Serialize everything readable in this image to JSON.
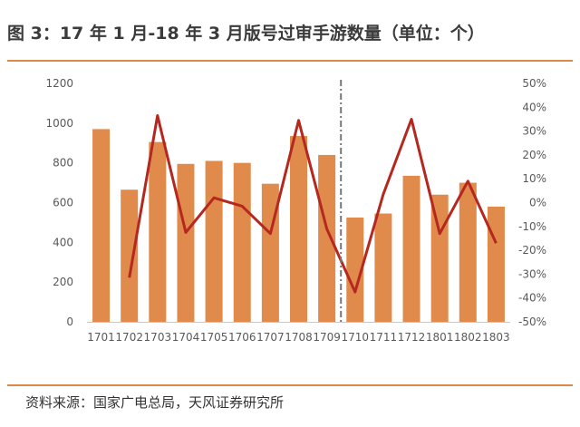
{
  "title": "图 3：17 年 1 月-18 年 3 月版号过审手游数量（单位：个）",
  "source": "资料来源：国家广电总局，天风证券研究所",
  "colors": {
    "bar": "#e08a4b",
    "line": "#b4281f",
    "rule": "#d98a4a",
    "divider": "#777777",
    "axis": "#c8c8c8",
    "text": "#595959"
  },
  "chart_data": {
    "type": "bar",
    "categories": [
      "1701",
      "1702",
      "1703",
      "1704",
      "1705",
      "1706",
      "1707",
      "1708",
      "1709",
      "1710",
      "1711",
      "1712",
      "1801",
      "1802",
      "1803"
    ],
    "left_axis": {
      "ylim": [
        0,
        1200
      ],
      "ticks": [
        0,
        200,
        400,
        600,
        800,
        1000,
        1200
      ]
    },
    "right_axis": {
      "ylim": [
        -50,
        50
      ],
      "ticks": [
        -50,
        -40,
        -30,
        -20,
        -10,
        0,
        10,
        20,
        30,
        40,
        50
      ],
      "tick_labels": [
        "-50%",
        "-40%",
        "-30%",
        "-20%",
        "-10%",
        "0%",
        "10%",
        "20%",
        "30%",
        "40%",
        "50%"
      ]
    },
    "series": [
      {
        "type": "bar",
        "axis": "left",
        "values": [
          970,
          665,
          905,
          795,
          810,
          800,
          695,
          935,
          840,
          525,
          545,
          735,
          640,
          700,
          580
        ]
      },
      {
        "type": "line",
        "axis": "right",
        "values": [
          null,
          -31.5,
          36.5,
          -12.5,
          2,
          -1.5,
          -13,
          34.5,
          -11,
          -37.5,
          3.5,
          35,
          -13,
          9,
          -17
        ]
      }
    ],
    "divider_after": "1709",
    "grid": false,
    "legend": "none"
  }
}
